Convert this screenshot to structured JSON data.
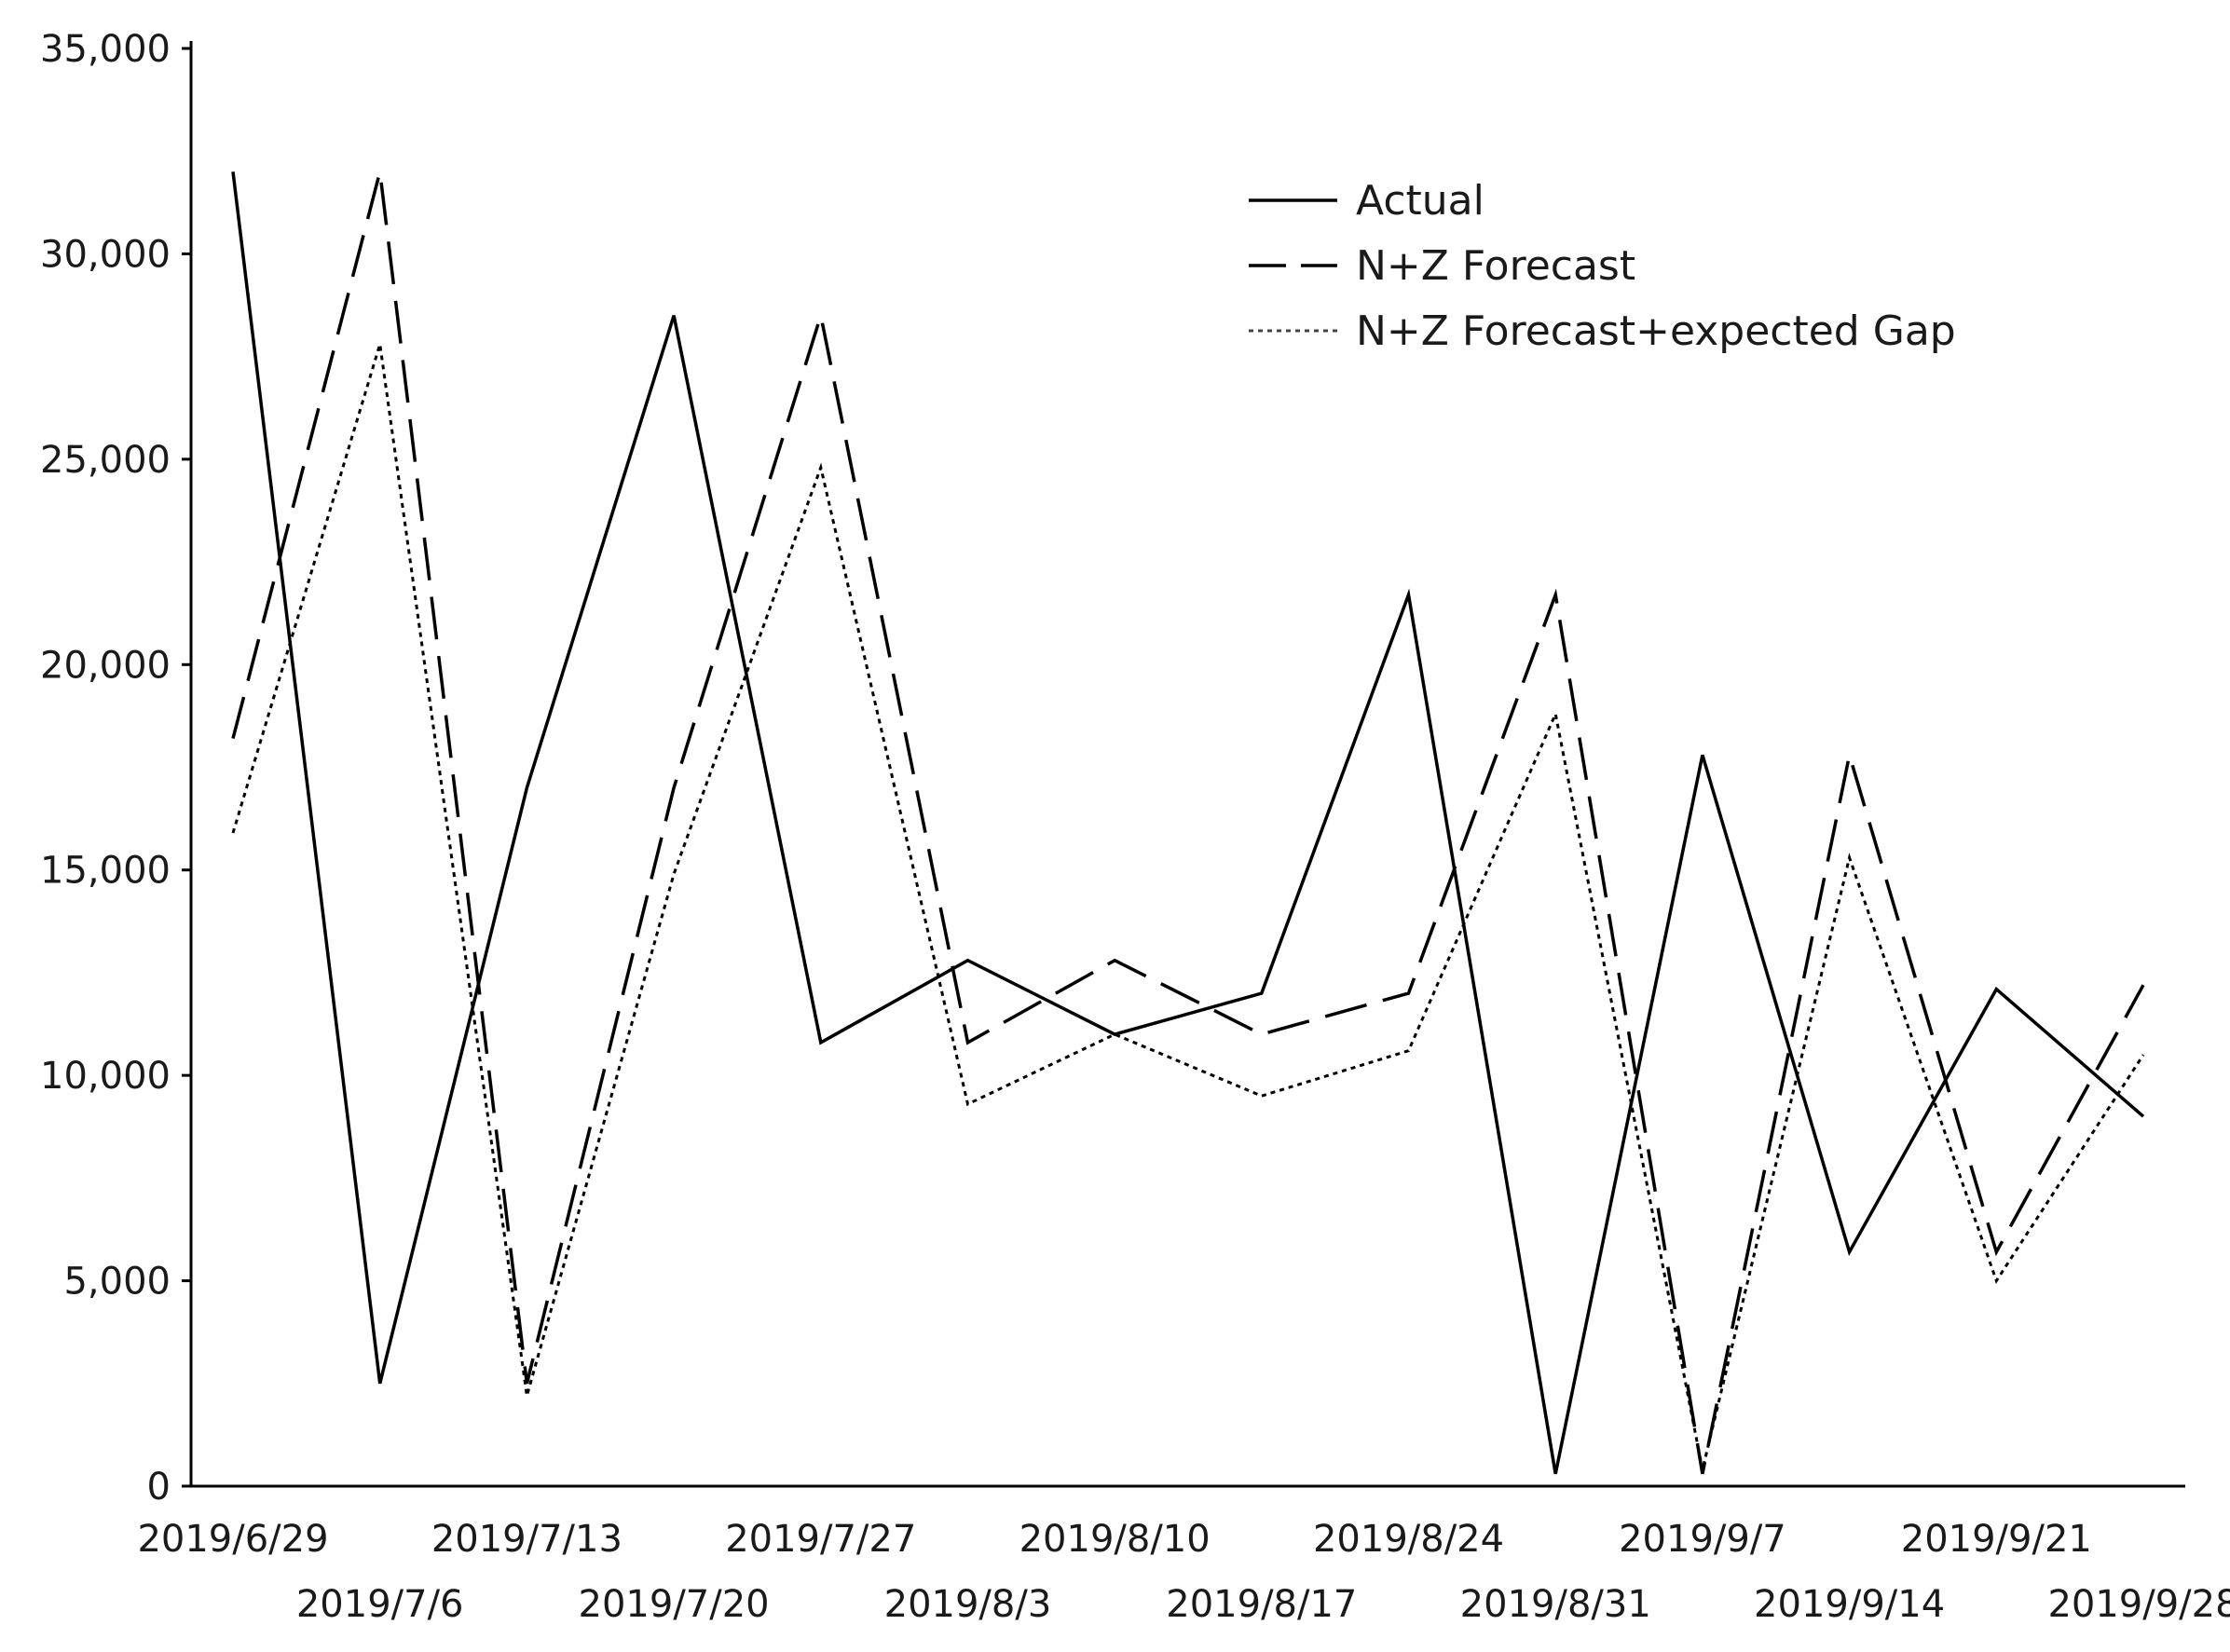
{
  "chart_data": {
    "type": "line",
    "title": "",
    "xlabel": "",
    "ylabel": "",
    "ylim": [
      0,
      35000
    ],
    "y_ticks": [
      0,
      5000,
      10000,
      15000,
      20000,
      25000,
      30000,
      35000
    ],
    "y_tick_labels": [
      "0",
      "5,000",
      "10,000",
      "15,000",
      "20,000",
      "25,000",
      "30,000",
      "35,000"
    ],
    "categories": [
      "2019/6/29",
      "2019/7/6",
      "2019/7/13",
      "2019/7/20",
      "2019/7/27",
      "2019/8/3",
      "2019/8/10",
      "2019/8/17",
      "2019/8/24",
      "2019/8/31",
      "2019/9/7",
      "2019/9/14",
      "2019/9/21",
      "2019/9/28"
    ],
    "grid": false,
    "legend_position": "top-right",
    "series": [
      {
        "name": "Actual",
        "style": "solid",
        "color": "#000000",
        "values": [
          32000,
          2500,
          17000,
          28500,
          10800,
          12800,
          11000,
          12000,
          21700,
          300,
          17800,
          5700,
          12100,
          9000
        ]
      },
      {
        "name": "N+Z Forecast",
        "style": "dashed",
        "color": "#000000",
        "values": [
          18200,
          32000,
          2500,
          17000,
          28500,
          10800,
          12800,
          11000,
          12000,
          21700,
          300,
          17800,
          5700,
          12200
        ]
      },
      {
        "name": "N+Z Forecast+expected Gap",
        "style": "dotted",
        "color": "#444444",
        "values": [
          15900,
          27800,
          2200,
          14900,
          24800,
          9300,
          11000,
          9500,
          10600,
          18800,
          400,
          15300,
          5000,
          10500
        ]
      }
    ]
  }
}
